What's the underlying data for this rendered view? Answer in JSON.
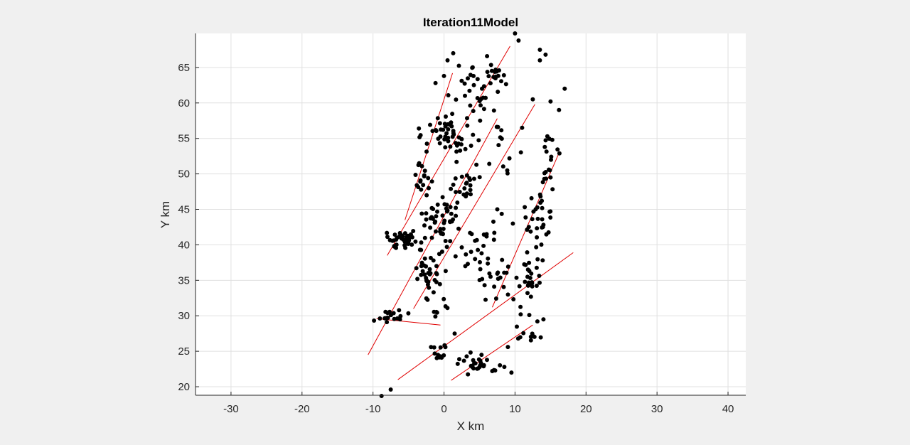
{
  "chart_data": {
    "type": "scatter",
    "title": "Iteration11Model",
    "xlabel": "X km",
    "ylabel": "Y km",
    "xlim": [
      -35,
      42.5
    ],
    "ylim": [
      18.8,
      69.8
    ],
    "x_ticks": [
      -30,
      -20,
      -10,
      0,
      10,
      20,
      30,
      40
    ],
    "y_ticks": [
      20,
      25,
      30,
      35,
      40,
      45,
      50,
      55,
      60,
      65
    ],
    "x_tick_labels": [
      "-30",
      "-20",
      "-10",
      "0",
      "10",
      "20",
      "30",
      "40"
    ],
    "y_tick_labels": [
      "20",
      "25",
      "30",
      "35",
      "40",
      "45",
      "50",
      "55",
      "60",
      "65"
    ],
    "grid": true,
    "colors": {
      "points": "#000000",
      "faults": "#e00000",
      "axes_bg": "#ffffff",
      "figure_bg": "#f0f0f0",
      "grid": "#e0e0e0",
      "axis": "#262626"
    },
    "fault_lines": [
      {
        "x1": -5.5,
        "y1": 43.5,
        "x2": 1.2,
        "y2": 64.2
      },
      {
        "x1": -8.0,
        "y1": 38.5,
        "x2": 9.3,
        "y2": 68.0
      },
      {
        "x1": -10.7,
        "y1": 24.5,
        "x2": 7.5,
        "y2": 57.8
      },
      {
        "x1": -4.3,
        "y1": 31.0,
        "x2": 12.8,
        "y2": 59.8
      },
      {
        "x1": 6.8,
        "y1": 31.2,
        "x2": 16.3,
        "y2": 53.2
      },
      {
        "x1": -6.5,
        "y1": 21.0,
        "x2": 18.2,
        "y2": 38.9
      },
      {
        "x1": 1.0,
        "y1": 20.9,
        "x2": 12.5,
        "y2": 28.7
      },
      {
        "x1": -9.5,
        "y1": 29.6,
        "x2": -0.5,
        "y2": 28.7
      }
    ],
    "clusters": [
      {
        "x": -7.5,
        "y": 29.8,
        "sx": 0.9,
        "sy": 0.5,
        "n": 18
      },
      {
        "x": -5.7,
        "y": 40.8,
        "sx": 1.2,
        "sy": 0.8,
        "n": 40
      },
      {
        "x": -2.8,
        "y": 48.6,
        "sx": 0.8,
        "sy": 1.3,
        "n": 16
      },
      {
        "x": 0.8,
        "y": 55.5,
        "sx": 1.6,
        "sy": 1.5,
        "n": 50
      },
      {
        "x": 4.5,
        "y": 61.0,
        "sx": 1.5,
        "sy": 2.0,
        "n": 28
      },
      {
        "x": 6.5,
        "y": 64.5,
        "sx": 1.0,
        "sy": 1.2,
        "n": 18
      },
      {
        "x": -0.8,
        "y": 43.0,
        "sx": 1.3,
        "sy": 1.7,
        "n": 45
      },
      {
        "x": 2.2,
        "y": 48.5,
        "sx": 1.4,
        "sy": 1.5,
        "n": 25
      },
      {
        "x": -1.8,
        "y": 36.2,
        "sx": 1.4,
        "sy": 1.6,
        "n": 30
      },
      {
        "x": 4.5,
        "y": 40.0,
        "sx": 2.0,
        "sy": 2.0,
        "n": 22
      },
      {
        "x": 7.5,
        "y": 35.0,
        "sx": 1.2,
        "sy": 1.5,
        "n": 20
      },
      {
        "x": 12.0,
        "y": 35.5,
        "sx": 0.9,
        "sy": 2.2,
        "n": 28
      },
      {
        "x": 13.2,
        "y": 43.5,
        "sx": 1.0,
        "sy": 2.2,
        "n": 28
      },
      {
        "x": 15.0,
        "y": 51.5,
        "sx": 1.0,
        "sy": 2.4,
        "n": 20
      },
      {
        "x": 4.5,
        "y": 23.0,
        "sx": 1.2,
        "sy": 0.7,
        "n": 28
      },
      {
        "x": -1.2,
        "y": 25.0,
        "sx": 0.6,
        "sy": 0.7,
        "n": 12
      },
      {
        "x": 12.2,
        "y": 28.5,
        "sx": 1.2,
        "sy": 1.8,
        "n": 14
      },
      {
        "x": 8.2,
        "y": 55.0,
        "sx": 1.4,
        "sy": 2.5,
        "n": 12
      },
      {
        "x": -0.8,
        "y": 31.5,
        "sx": 0.8,
        "sy": 1.3,
        "n": 10
      }
    ],
    "extra_points": [
      [
        -8.8,
        18.7
      ],
      [
        -7.5,
        19.6
      ],
      [
        1.3,
        67.0
      ],
      [
        0.5,
        66.0
      ],
      [
        10.0,
        69.8
      ],
      [
        10.5,
        68.8
      ],
      [
        13.5,
        67.5
      ],
      [
        14.3,
        66.8
      ],
      [
        13.5,
        66.0
      ],
      [
        17.0,
        62.0
      ],
      [
        12.5,
        60.5
      ],
      [
        16.2,
        59.0
      ],
      [
        15.0,
        60.2
      ],
      [
        -1.2,
        62.8
      ],
      [
        0.0,
        63.8
      ],
      [
        9.5,
        22.0
      ],
      [
        8.5,
        22.8
      ],
      [
        14.0,
        29.5
      ],
      [
        9.0,
        25.6
      ],
      [
        10.8,
        30.2
      ],
      [
        7.5,
        45.0
      ],
      [
        9.7,
        43.0
      ],
      [
        -3.5,
        51.5
      ],
      [
        7.6,
        56.6
      ],
      [
        11.0,
        56.5
      ],
      [
        1.5,
        27.5
      ],
      [
        6.0,
        41.5
      ],
      [
        3.0,
        37.0
      ]
    ]
  }
}
